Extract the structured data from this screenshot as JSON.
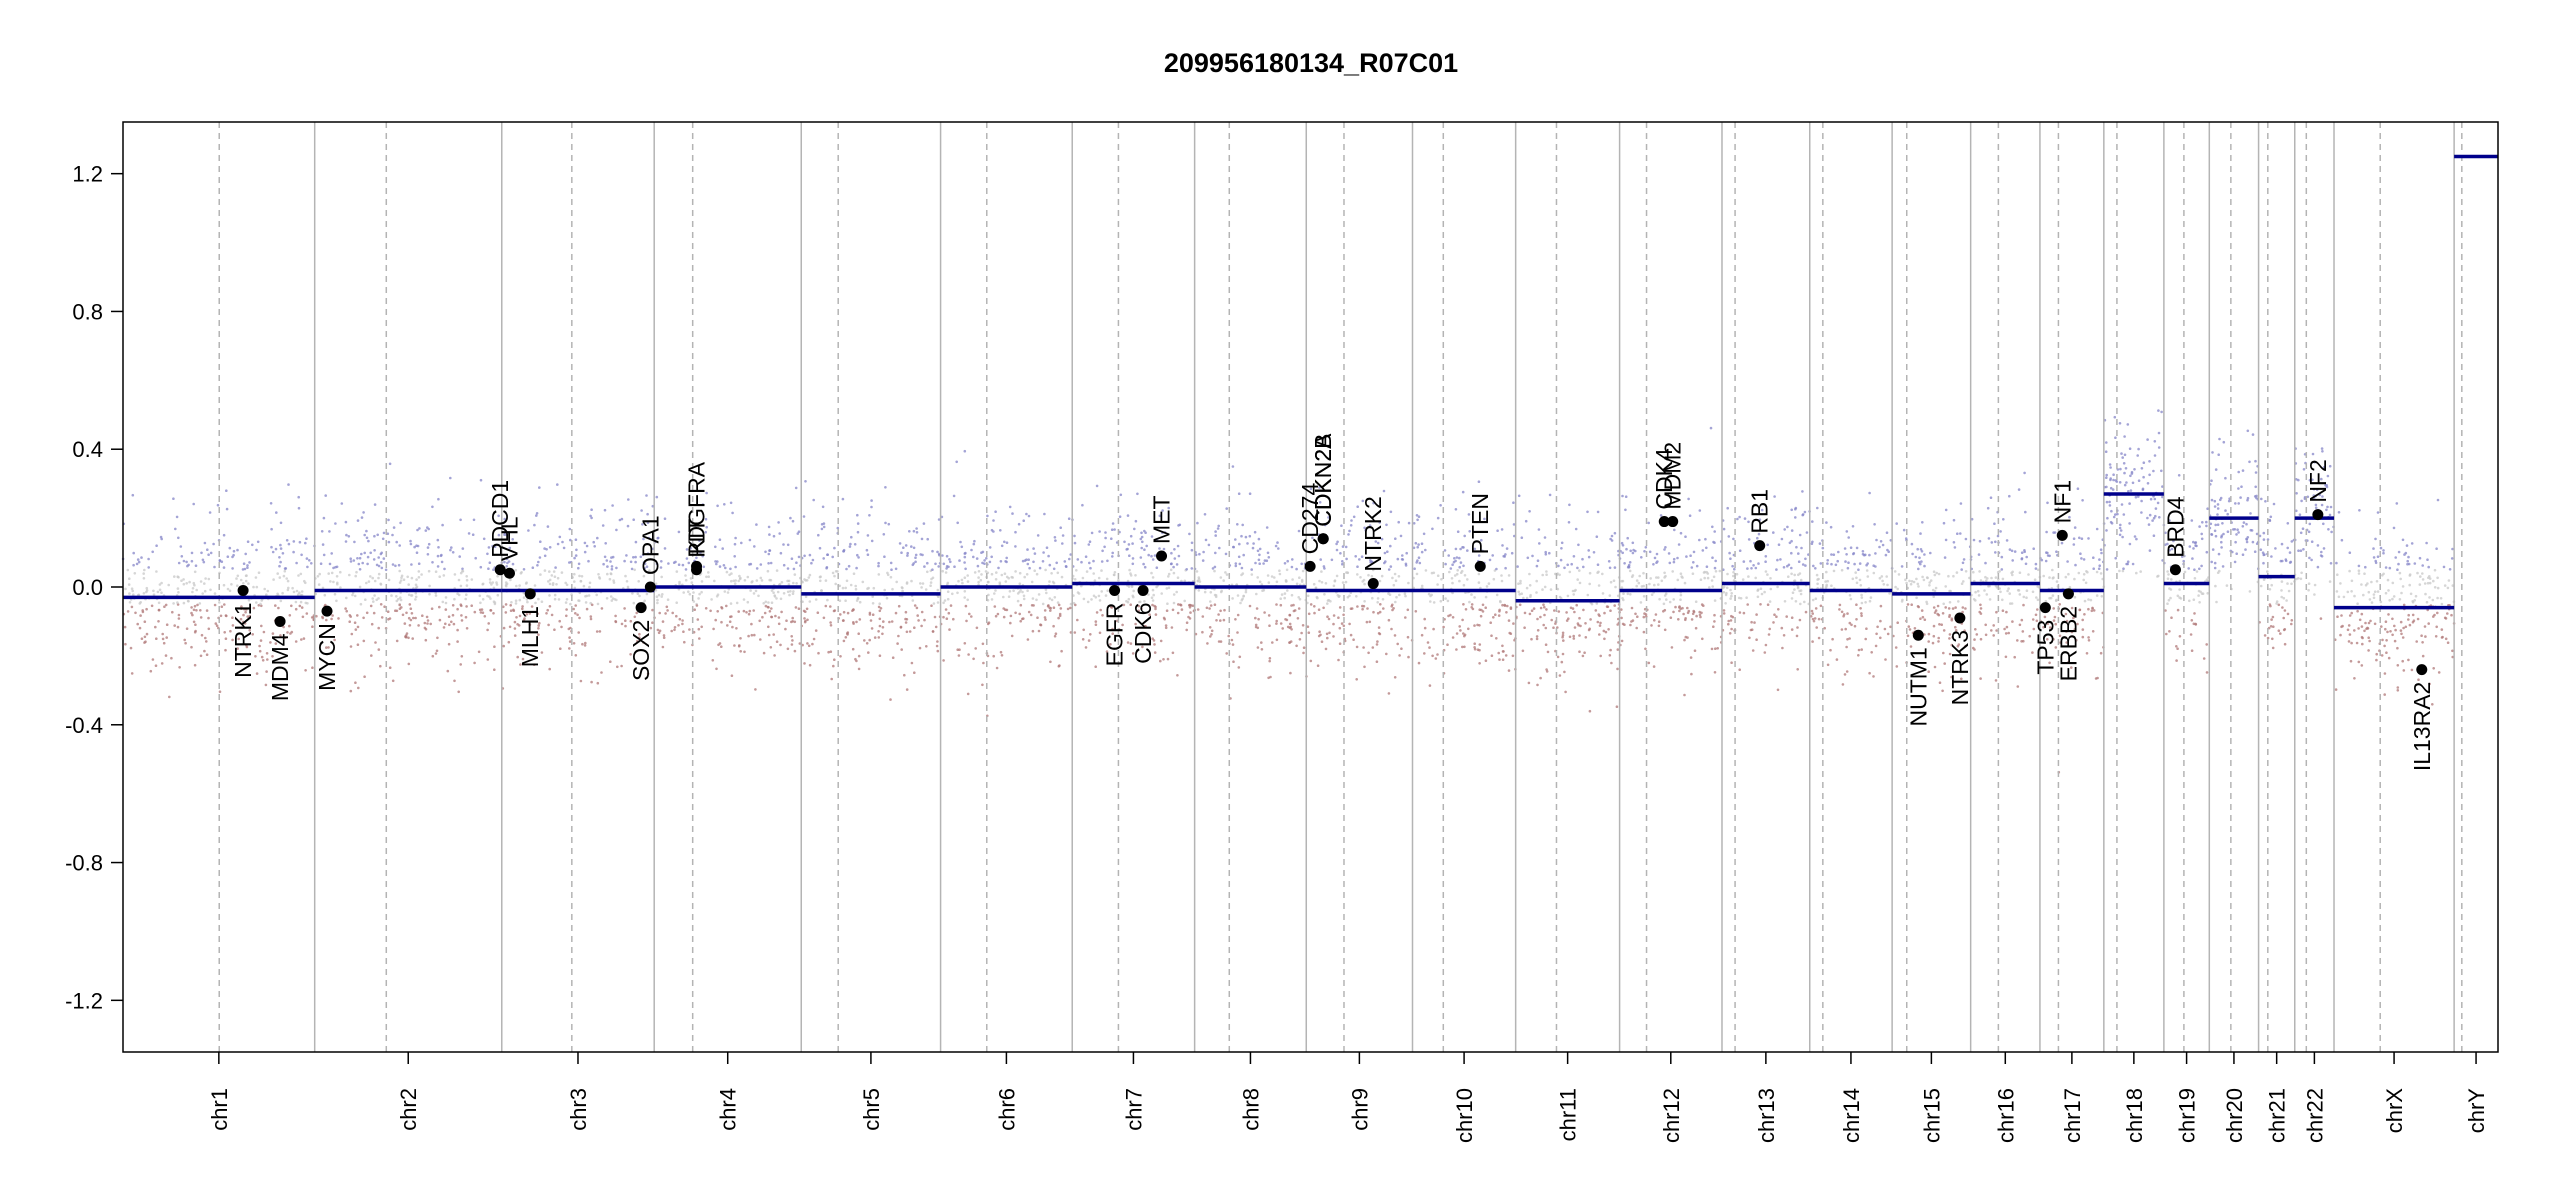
{
  "chart_data": {
    "type": "scatter",
    "title": "209956180134_R07C01",
    "xlabel": "",
    "ylabel": "",
    "ylim": [
      -1.35,
      1.35
    ],
    "y_ticks": [
      1.2,
      0.8,
      0.4,
      0.0,
      -0.4,
      -0.8,
      -1.2
    ],
    "y_tick_labels": [
      "1.2",
      "0.8",
      "0.4",
      "0.0",
      "-0.4",
      "-0.8",
      "-1.2"
    ],
    "grid": false,
    "colors": {
      "segment": "#00008b",
      "gain_points": "#8585c8",
      "loss_points": "#b07878",
      "neutral_points": "#c8c8c8",
      "chromosome_border": "#b4b4b4",
      "centromere": "#b4b4b4",
      "gene_point": "#000000"
    },
    "chromosomes": [
      {
        "name": "chr1",
        "length": 249,
        "centromere": 125,
        "segment": -0.03
      },
      {
        "name": "chr2",
        "length": 243,
        "centromere": 93,
        "segment": -0.01
      },
      {
        "name": "chr3",
        "length": 198,
        "centromere": 91,
        "segment": -0.01
      },
      {
        "name": "chr4",
        "length": 191,
        "centromere": 50,
        "segment": 0.0
      },
      {
        "name": "chr5",
        "length": 181,
        "centromere": 48,
        "segment": -0.02
      },
      {
        "name": "chr6",
        "length": 171,
        "centromere": 60,
        "segment": 0.0
      },
      {
        "name": "chr7",
        "length": 159,
        "centromere": 60,
        "segment": 0.01
      },
      {
        "name": "chr8",
        "length": 145,
        "centromere": 45,
        "segment": 0.0
      },
      {
        "name": "chr9",
        "length": 138,
        "centromere": 49,
        "segment": -0.01
      },
      {
        "name": "chr10",
        "length": 134,
        "centromere": 40,
        "segment": -0.01
      },
      {
        "name": "chr11",
        "length": 135,
        "centromere": 53,
        "segment": -0.04
      },
      {
        "name": "chr12",
        "length": 133,
        "centromere": 35,
        "segment": -0.01
      },
      {
        "name": "chr13",
        "length": 114,
        "centromere": 17,
        "segment": 0.01
      },
      {
        "name": "chr14",
        "length": 107,
        "centromere": 17,
        "segment": -0.01
      },
      {
        "name": "chr15",
        "length": 102,
        "centromere": 19,
        "segment": -0.02
      },
      {
        "name": "chr16",
        "length": 90,
        "centromere": 36,
        "segment": 0.01
      },
      {
        "name": "chr17",
        "length": 83,
        "centromere": 24,
        "segment": -0.01
      },
      {
        "name": "chr18",
        "length": 78,
        "centromere": 17,
        "segment": 0.27
      },
      {
        "name": "chr19",
        "length": 59,
        "centromere": 26,
        "segment": 0.01
      },
      {
        "name": "chr20",
        "length": 64,
        "centromere": 28,
        "segment": 0.2
      },
      {
        "name": "chr21",
        "length": 47,
        "centromere": 12,
        "segment": 0.03
      },
      {
        "name": "chr22",
        "length": 51,
        "centromere": 15,
        "segment": 0.2
      },
      {
        "name": "chrX",
        "length": 156,
        "centromere": 60,
        "segment": -0.06
      },
      {
        "name": "chrY",
        "length": 57,
        "centromere": 10,
        "segment": 1.25
      }
    ],
    "genes": [
      {
        "name": "NTRK1",
        "chr": "chr1",
        "pos": 156,
        "value": -0.01
      },
      {
        "name": "MDM4",
        "chr": "chr1",
        "pos": 204,
        "value": -0.1
      },
      {
        "name": "MYCN",
        "chr": "chr2",
        "pos": 16,
        "value": -0.07
      },
      {
        "name": "PDCD1",
        "chr": "chr2",
        "pos": 241,
        "value": 0.05
      },
      {
        "name": "VHL",
        "chr": "chr3",
        "pos": 10,
        "value": 0.04
      },
      {
        "name": "MLH1",
        "chr": "chr3",
        "pos": 37,
        "value": -0.02
      },
      {
        "name": "SOX2",
        "chr": "chr3",
        "pos": 181,
        "value": -0.06
      },
      {
        "name": "OPA1",
        "chr": "chr3",
        "pos": 193,
        "value": 0.0
      },
      {
        "name": "KIT",
        "chr": "chr4",
        "pos": 55,
        "value": 0.06
      },
      {
        "name": "PDGFRA",
        "chr": "chr4",
        "pos": 55,
        "value": 0.05
      },
      {
        "name": "EGFR",
        "chr": "chr7",
        "pos": 55,
        "value": -0.01
      },
      {
        "name": "CDK6",
        "chr": "chr7",
        "pos": 92,
        "value": -0.01
      },
      {
        "name": "MET",
        "chr": "chr7",
        "pos": 116,
        "value": 0.09
      },
      {
        "name": "CD274",
        "chr": "chr9",
        "pos": 5,
        "value": 0.06
      },
      {
        "name": "CDKN2A",
        "chr": "chr9",
        "pos": 22,
        "value": 0.14
      },
      {
        "name": "CDKN2B",
        "chr": "chr9",
        "pos": 22,
        "value": 0.14
      },
      {
        "name": "NTRK2",
        "chr": "chr9",
        "pos": 87,
        "value": 0.01
      },
      {
        "name": "PTEN",
        "chr": "chr10",
        "pos": 88,
        "value": 0.06
      },
      {
        "name": "CDK4",
        "chr": "chr12",
        "pos": 58,
        "value": 0.19
      },
      {
        "name": "MDM2",
        "chr": "chr12",
        "pos": 69,
        "value": 0.19
      },
      {
        "name": "RB1",
        "chr": "chr13",
        "pos": 49,
        "value": 0.12
      },
      {
        "name": "NUTM1",
        "chr": "chr15",
        "pos": 34,
        "value": -0.14
      },
      {
        "name": "NTRK3",
        "chr": "chr15",
        "pos": 88,
        "value": -0.09
      },
      {
        "name": "TP53",
        "chr": "chr17",
        "pos": 7,
        "value": -0.06
      },
      {
        "name": "NF1",
        "chr": "chr17",
        "pos": 29,
        "value": 0.15
      },
      {
        "name": "ERBB2",
        "chr": "chr17",
        "pos": 37,
        "value": -0.02
      },
      {
        "name": "BRD4",
        "chr": "chr19",
        "pos": 15,
        "value": 0.05
      },
      {
        "name": "NF2",
        "chr": "chr22",
        "pos": 30,
        "value": 0.21
      },
      {
        "name": "IL13RA2",
        "chr": "chrX",
        "pos": 114,
        "value": -0.24
      }
    ]
  }
}
